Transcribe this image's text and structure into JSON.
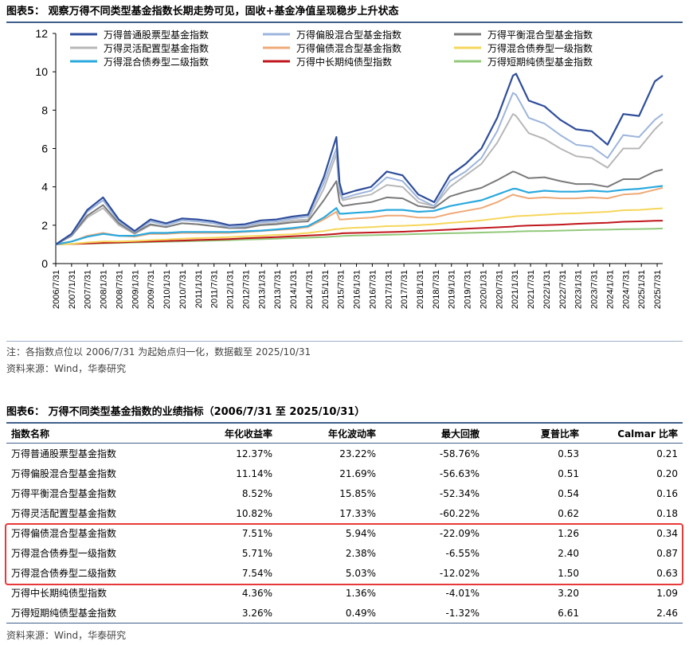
{
  "figure5": {
    "title": "图表5：  观察万得不同类型基金指数长期走势可见，固收+基金净值呈现稳步上升状态",
    "note": "注：各指数点位以 2006/7/31 为起始点归一化，数据截至 2025/10/31",
    "source": "资料来源：Wind，华泰研究"
  },
  "chart_data": {
    "type": "line",
    "title": "",
    "xlabel": "",
    "ylabel": "",
    "ylim": [
      0,
      12
    ],
    "yticks": [
      0,
      2,
      4,
      6,
      8,
      10,
      12
    ],
    "grid": false,
    "legend_position": "top",
    "categories": [
      "2006/7/31",
      "2007/1/31",
      "2007/7/31",
      "2008/1/31",
      "2008/7/31",
      "2009/1/31",
      "2009/7/31",
      "2010/1/31",
      "2010/7/31",
      "2011/1/31",
      "2011/7/31",
      "2012/1/31",
      "2012/7/31",
      "2013/1/31",
      "2013/7/31",
      "2014/1/31",
      "2014/7/31",
      "2015/1/31",
      "2015/7/31",
      "2016/1/31",
      "2016/7/31",
      "2017/1/31",
      "2017/7/31",
      "2018/1/31",
      "2018/7/31",
      "2019/1/31",
      "2019/7/31",
      "2020/1/31",
      "2020/7/31",
      "2021/1/31",
      "2021/7/31",
      "2022/1/31",
      "2022/7/31",
      "2023/1/31",
      "2023/7/31",
      "2024/1/31",
      "2024/7/31",
      "2025/1/31",
      "2025/7/31"
    ],
    "x": [
      0,
      0.5,
      1,
      1.5,
      2,
      2.5,
      3,
      3.5,
      4,
      4.5,
      5,
      5.5,
      6,
      6.5,
      7,
      7.5,
      8,
      8.5,
      8.9,
      9,
      9.1,
      9.5,
      10,
      10.5,
      11,
      11.5,
      12,
      12.5,
      13,
      13.5,
      14,
      14.5,
      14.6,
      15,
      15.5,
      16,
      16.5,
      17,
      17.5,
      18,
      18.5,
      19,
      19.25
    ],
    "series": [
      {
        "name": "万得普通股票型基金指数",
        "color": "#2e4d9b",
        "width": 2.2,
        "values": [
          1.0,
          1.55,
          2.8,
          3.45,
          2.3,
          1.7,
          2.3,
          2.1,
          2.35,
          2.3,
          2.2,
          2.0,
          2.05,
          2.25,
          2.3,
          2.45,
          2.55,
          4.5,
          6.6,
          4.2,
          3.6,
          3.8,
          4.0,
          4.8,
          4.6,
          3.6,
          3.2,
          4.6,
          5.2,
          6.0,
          7.6,
          9.8,
          9.9,
          8.5,
          8.2,
          7.5,
          7.0,
          6.9,
          6.2,
          7.8,
          7.7,
          9.5,
          9.8
        ]
      },
      {
        "name": "万得偏股混合型基金指数",
        "color": "#9db5dc",
        "width": 2,
        "values": [
          1.0,
          1.5,
          2.7,
          3.3,
          2.2,
          1.65,
          2.2,
          2.0,
          2.25,
          2.2,
          2.1,
          1.9,
          1.95,
          2.15,
          2.2,
          2.35,
          2.45,
          4.2,
          6.0,
          3.9,
          3.4,
          3.6,
          3.8,
          4.5,
          4.3,
          3.4,
          3.0,
          4.3,
          4.8,
          5.5,
          6.9,
          8.9,
          8.8,
          7.6,
          7.3,
          6.7,
          6.2,
          6.1,
          5.5,
          6.7,
          6.6,
          7.5,
          7.8
        ]
      },
      {
        "name": "万得平衡混合型基金指数",
        "color": "#7a7a7a",
        "width": 2,
        "values": [
          1.0,
          1.45,
          2.5,
          3.05,
          2.1,
          1.6,
          2.05,
          1.9,
          2.1,
          2.05,
          1.95,
          1.85,
          1.85,
          2.0,
          2.05,
          2.15,
          2.2,
          3.3,
          4.3,
          3.2,
          3.0,
          3.1,
          3.2,
          3.45,
          3.4,
          3.0,
          2.9,
          3.5,
          3.75,
          3.95,
          4.35,
          4.8,
          4.75,
          4.45,
          4.5,
          4.3,
          4.15,
          4.15,
          4.0,
          4.4,
          4.4,
          4.8,
          4.9
        ]
      },
      {
        "name": "万得灵活配置型基金指数",
        "color": "#b7b7b7",
        "width": 2,
        "values": [
          1.0,
          1.45,
          2.4,
          2.9,
          2.0,
          1.55,
          2.0,
          1.9,
          2.1,
          2.05,
          1.95,
          1.85,
          1.9,
          2.05,
          2.1,
          2.25,
          2.3,
          3.9,
          5.7,
          3.7,
          3.3,
          3.45,
          3.6,
          4.1,
          4.0,
          3.2,
          3.0,
          4.0,
          4.6,
          5.2,
          6.3,
          7.8,
          7.7,
          6.8,
          6.5,
          6.0,
          5.6,
          5.5,
          5.0,
          6.0,
          6.0,
          7.0,
          7.4
        ]
      },
      {
        "name": "万得偏债混合型基金指数",
        "color": "#eea977",
        "width": 2,
        "values": [
          1.0,
          1.15,
          1.45,
          1.6,
          1.45,
          1.4,
          1.55,
          1.55,
          1.6,
          1.6,
          1.6,
          1.6,
          1.65,
          1.7,
          1.75,
          1.8,
          1.9,
          2.3,
          2.7,
          2.3,
          2.3,
          2.35,
          2.4,
          2.5,
          2.5,
          2.4,
          2.4,
          2.6,
          2.75,
          2.9,
          3.2,
          3.6,
          3.55,
          3.4,
          3.45,
          3.4,
          3.4,
          3.45,
          3.4,
          3.6,
          3.65,
          3.85,
          3.95
        ]
      },
      {
        "name": "万得混合债券型一级指数",
        "color": "#f6d65a",
        "width": 2,
        "values": [
          1.0,
          1.03,
          1.1,
          1.15,
          1.15,
          1.18,
          1.22,
          1.25,
          1.3,
          1.33,
          1.35,
          1.38,
          1.42,
          1.45,
          1.5,
          1.53,
          1.6,
          1.7,
          1.8,
          1.8,
          1.83,
          1.87,
          1.9,
          1.95,
          1.97,
          2.0,
          2.05,
          2.12,
          2.18,
          2.25,
          2.35,
          2.45,
          2.47,
          2.5,
          2.55,
          2.6,
          2.62,
          2.66,
          2.7,
          2.78,
          2.8,
          2.86,
          2.88
        ]
      },
      {
        "name": "万得混合债券型二级指数",
        "color": "#2aa9de",
        "width": 2.2,
        "values": [
          1.0,
          1.15,
          1.4,
          1.55,
          1.45,
          1.45,
          1.6,
          1.6,
          1.65,
          1.65,
          1.65,
          1.65,
          1.68,
          1.72,
          1.78,
          1.85,
          1.95,
          2.4,
          2.9,
          2.6,
          2.6,
          2.65,
          2.7,
          2.8,
          2.8,
          2.7,
          2.75,
          3.0,
          3.15,
          3.3,
          3.6,
          3.9,
          3.9,
          3.7,
          3.8,
          3.75,
          3.75,
          3.8,
          3.75,
          3.85,
          3.9,
          4.0,
          4.05
        ]
      },
      {
        "name": "万得中长期纯债型指数",
        "color": "#c0161c",
        "width": 2,
        "values": [
          1.0,
          1.02,
          1.05,
          1.08,
          1.1,
          1.13,
          1.15,
          1.18,
          1.2,
          1.23,
          1.25,
          1.28,
          1.32,
          1.35,
          1.38,
          1.42,
          1.46,
          1.5,
          1.55,
          1.56,
          1.58,
          1.6,
          1.62,
          1.64,
          1.66,
          1.7,
          1.73,
          1.77,
          1.82,
          1.85,
          1.89,
          1.93,
          1.95,
          1.98,
          2.0,
          2.03,
          2.07,
          2.1,
          2.13,
          2.18,
          2.2,
          2.23,
          2.24
        ]
      },
      {
        "name": "万得短期纯债型基金指数",
        "color": "#92c97b",
        "width": 2,
        "values": [
          1.0,
          1.02,
          1.04,
          1.06,
          1.08,
          1.1,
          1.12,
          1.14,
          1.16,
          1.18,
          1.2,
          1.22,
          1.25,
          1.27,
          1.3,
          1.33,
          1.35,
          1.38,
          1.42,
          1.43,
          1.44,
          1.46,
          1.48,
          1.5,
          1.52,
          1.54,
          1.56,
          1.58,
          1.6,
          1.62,
          1.64,
          1.66,
          1.67,
          1.69,
          1.7,
          1.72,
          1.74,
          1.76,
          1.77,
          1.79,
          1.8,
          1.82,
          1.83
        ]
      }
    ]
  },
  "table6": {
    "title": "图表6：  万得不同类型基金指数的业绩指标（2006/7/31 至 2025/10/31）",
    "headers": [
      "指数名称",
      "年化收益率",
      "年化波动率",
      "最大回撤",
      "夏普比率",
      "Calmar 比率"
    ],
    "rows": [
      [
        "万得普通股票型基金指数",
        "12.37%",
        "23.22%",
        "-58.76%",
        "0.53",
        "0.21"
      ],
      [
        "万得偏股混合型基金指数",
        "11.14%",
        "21.69%",
        "-56.63%",
        "0.51",
        "0.20"
      ],
      [
        "万得平衡混合型基金指数",
        "8.52%",
        "15.85%",
        "-52.34%",
        "0.54",
        "0.16"
      ],
      [
        "万得灵活配置型基金指数",
        "10.82%",
        "17.33%",
        "-60.22%",
        "0.62",
        "0.18"
      ],
      [
        "万得偏债混合型基金指数",
        "7.51%",
        "5.94%",
        "-22.09%",
        "1.26",
        "0.34"
      ],
      [
        "万得混合债券型一级指数",
        "5.71%",
        "2.38%",
        "-6.55%",
        "2.40",
        "0.87"
      ],
      [
        "万得混合债券型二级指数",
        "7.54%",
        "5.03%",
        "-12.02%",
        "1.50",
        "0.63"
      ],
      [
        "万得中长期纯债型指数",
        "4.36%",
        "1.36%",
        "-4.01%",
        "3.20",
        "1.09"
      ],
      [
        "万得短期纯债型基金指数",
        "3.26%",
        "0.49%",
        "-1.32%",
        "6.61",
        "2.46"
      ]
    ],
    "highlight_rows": [
      "万得偏债混合型基金指数",
      "万得混合债券型一级指数",
      "万得混合债券型二级指数"
    ],
    "highlight_color": "#e8393a",
    "source": "资料来源：Wind，华泰研究"
  }
}
